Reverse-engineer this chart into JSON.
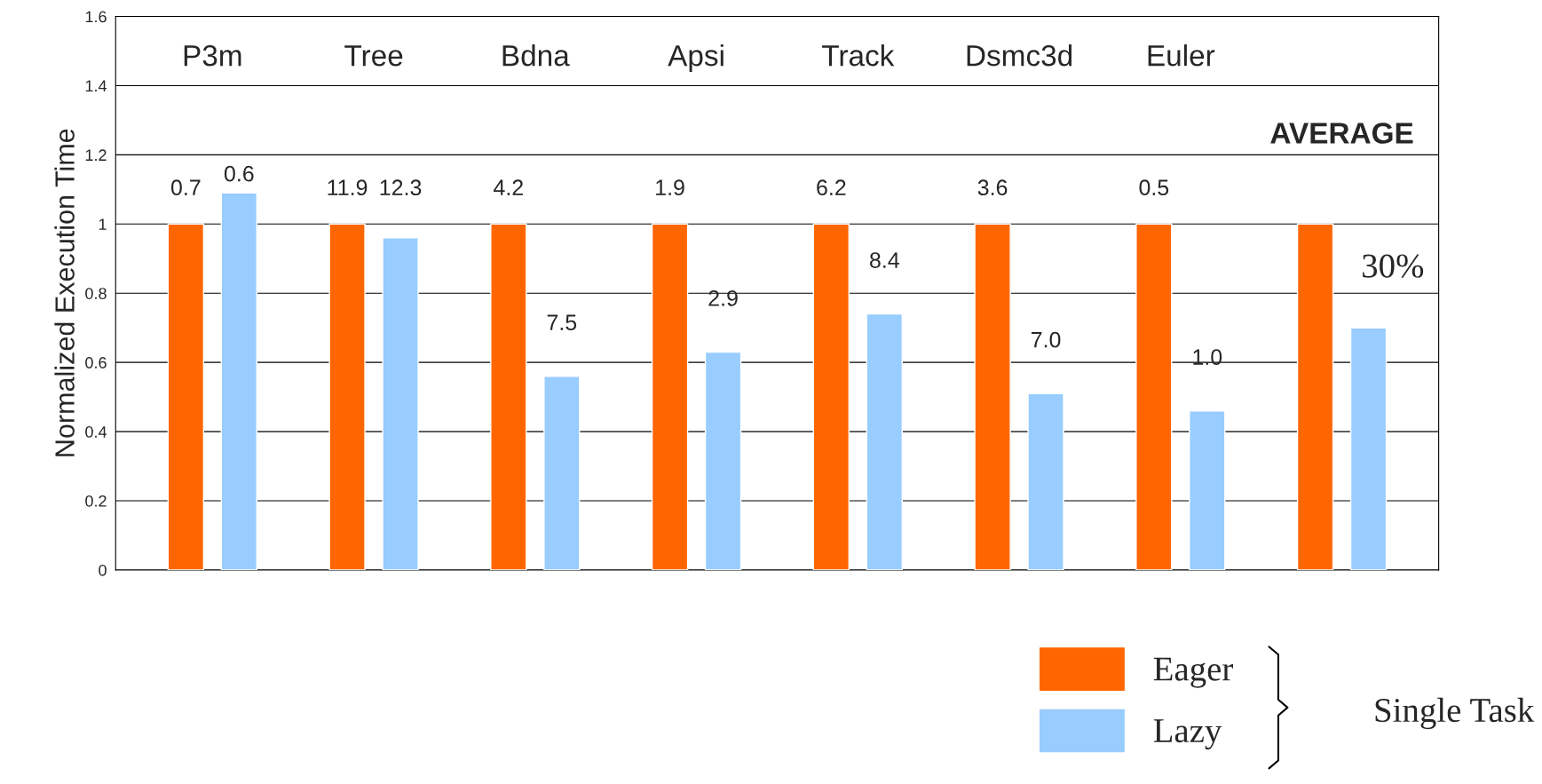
{
  "chart_data": {
    "type": "bar",
    "ylabel": "Normalized Execution Time",
    "categories": [
      "P3m",
      "Tree",
      "Bdna",
      "Apsi",
      "Track",
      "Dsmc3d",
      "Euler",
      "AVERAGE"
    ],
    "series": [
      {
        "name": "Eager",
        "color": "#ff6600",
        "values": [
          1,
          1,
          1,
          1,
          1,
          1,
          1,
          1
        ]
      },
      {
        "name": "Lazy",
        "color": "#99ccff",
        "values": [
          1.09,
          0.96,
          0.56,
          0.63,
          0.74,
          0.51,
          0.46,
          0.7
        ]
      }
    ],
    "annotations": [
      "0.7",
      "0.6",
      "11.9",
      "12.3",
      "4.2",
      "7.5",
      "1.9",
      "2.9",
      "6.2",
      "8.4",
      "3.6",
      "7.0",
      "0.5",
      "1.0",
      "30%"
    ],
    "ylim": [
      0,
      1.6
    ],
    "yticks": [
      0,
      0.2,
      0.4,
      0.6,
      0.8,
      1,
      1.2,
      1.4,
      1.6
    ],
    "grid": "y",
    "legend": "bottom right",
    "legend_title": "Single Task"
  }
}
